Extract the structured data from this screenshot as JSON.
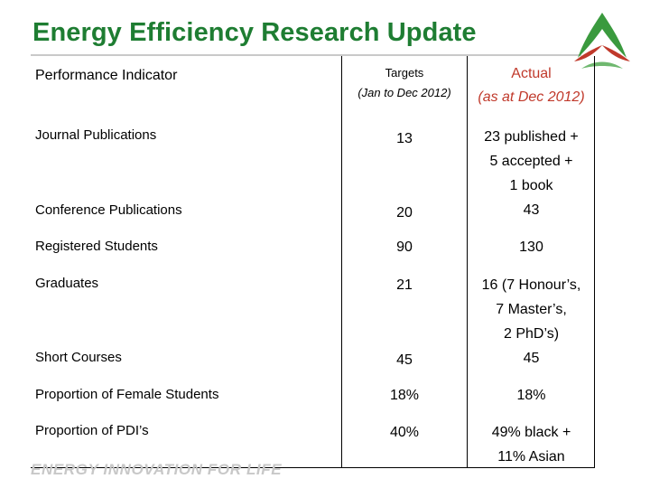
{
  "slide": {
    "title": "Energy Efficiency Research Update",
    "footer": "ENERGY INNOVATION FOR LIFE"
  },
  "colors": {
    "title_green": "#1e7d32",
    "actual_header_red": "#c0392b",
    "logo_green": "#3a9a3e",
    "logo_red": "#c0392b"
  },
  "table": {
    "header": {
      "indicator": "Performance Indicator",
      "targets_line1": "Targets",
      "targets_line2": "(Jan to Dec 2012)",
      "actual_line1": "Actual",
      "actual_line2": "(as at Dec 2012)"
    },
    "rows": [
      {
        "indicator": "Journal Publications",
        "target": "13",
        "actual": [
          "23 published +",
          "5 accepted +",
          "1 book"
        ]
      },
      {
        "indicator": "Conference Publications",
        "target": "20",
        "actual": [
          "43"
        ]
      },
      {
        "indicator": "Registered Students",
        "target": "90",
        "actual": [
          "130"
        ]
      },
      {
        "indicator": "Graduates",
        "target": "21",
        "actual": [
          "16 (7 Honour’s,",
          "7 Master’s,",
          "2 PhD’s)"
        ]
      },
      {
        "indicator": "Short Courses",
        "target": "45",
        "actual": [
          "45"
        ]
      },
      {
        "indicator": "Proportion of Female Students",
        "target": "18%",
        "actual": [
          "18%"
        ]
      },
      {
        "indicator": "Proportion of PDI’s",
        "target": "40%",
        "actual": [
          "49% black +",
          "11% Asian"
        ]
      }
    ]
  }
}
